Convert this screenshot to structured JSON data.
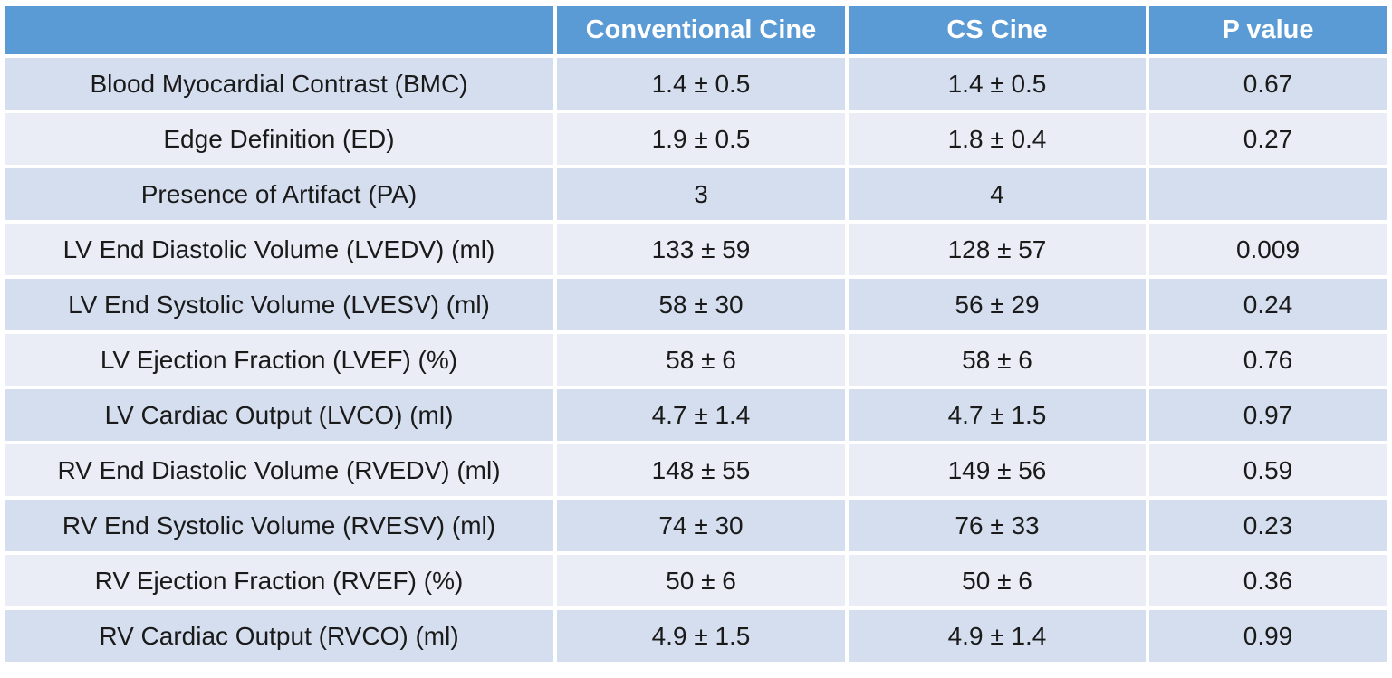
{
  "chart_data": {
    "type": "table",
    "columns": [
      "",
      "Conventional Cine",
      "CS Cine",
      "P value"
    ],
    "rows": [
      {
        "label": "Blood Myocardial Contrast (BMC)",
        "conventional": "1.4 ± 0.5",
        "cs": "1.4 ± 0.5",
        "p": "0.67"
      },
      {
        "label": "Edge Definition (ED)",
        "conventional": "1.9 ± 0.5",
        "cs": "1.8 ± 0.4",
        "p": "0.27"
      },
      {
        "label": "Presence of Artifact (PA)",
        "conventional": "3",
        "cs": "4",
        "p": ""
      },
      {
        "label": "LV End Diastolic Volume (LVEDV) (ml)",
        "conventional": "133 ± 59",
        "cs": "128 ± 57",
        "p": "0.009"
      },
      {
        "label": "LV End Systolic Volume (LVESV) (ml)",
        "conventional": "58 ± 30",
        "cs": "56 ± 29",
        "p": "0.24"
      },
      {
        "label": "LV Ejection Fraction (LVEF) (%)",
        "conventional": "58 ± 6",
        "cs": "58 ± 6",
        "p": "0.76"
      },
      {
        "label": "LV Cardiac Output (LVCO) (ml)",
        "conventional": "4.7 ± 1.4",
        "cs": "4.7 ± 1.5",
        "p": "0.97"
      },
      {
        "label": "RV End Diastolic Volume (RVEDV) (ml)",
        "conventional": "148 ± 55",
        "cs": "149 ± 56",
        "p": "0.59"
      },
      {
        "label": "RV End Systolic Volume (RVESV) (ml)",
        "conventional": "74 ± 30",
        "cs": "76 ± 33",
        "p": "0.23"
      },
      {
        "label": "RV Ejection Fraction (RVEF) (%)",
        "conventional": "50 ± 6",
        "cs": "50 ± 6",
        "p": "0.36"
      },
      {
        "label": "RV Cardiac Output (RVCO) (ml)",
        "conventional": "4.9 ± 1.5",
        "cs": "4.9 ± 1.4",
        "p": "0.99"
      }
    ]
  },
  "colors": {
    "header_bg": "#5B9BD5",
    "header_text": "#FFFFFF",
    "row_dark": "#D5DEEE",
    "row_light": "#EAEDF5",
    "grid_line": "#FFFFFF",
    "body_text": "#1A1A1A"
  }
}
